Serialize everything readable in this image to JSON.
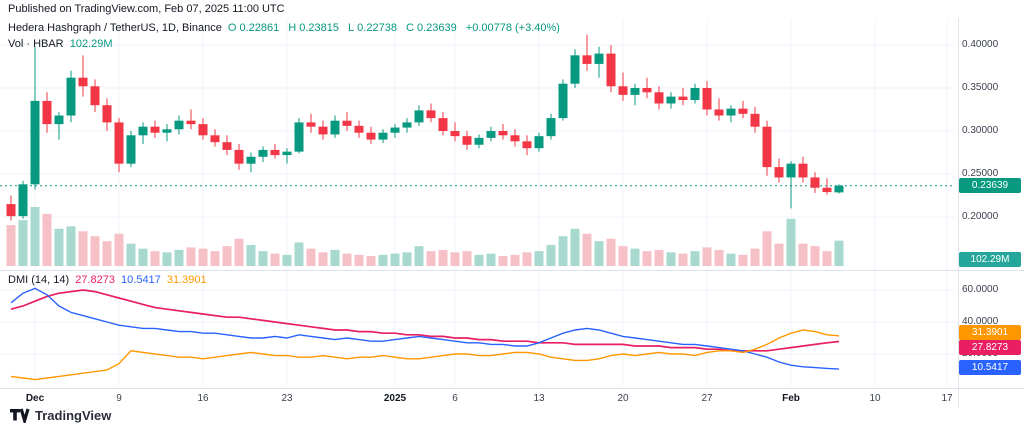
{
  "meta": {
    "published": "Published on TradingView.com, Feb 07, 2025 11:00 UTC"
  },
  "legend": {
    "symbol": "Hedera Hashgraph / TetherUS, 1D, Binance",
    "ohlc": {
      "o_label": "O",
      "o": "0.22861",
      "h_label": "H",
      "h": "0.23815",
      "l_label": "L",
      "l": "0.22738",
      "c_label": "C",
      "c": "0.23639",
      "change": "+0.00778 (+3.40%)"
    },
    "volume": {
      "label": "Vol · HBAR",
      "value": "102.29M"
    },
    "dmi": {
      "label": "DMI (14, 14)",
      "adx": "27.8273",
      "plus_di": "10.5417",
      "minus_di": "31.3901"
    }
  },
  "badges": {
    "last_price": "0.23639",
    "volume": "102.29M",
    "minus_di": "31.3901",
    "adx": "27.8273",
    "plus_di": "10.5417"
  },
  "axes": {
    "price_labels": [
      {
        "text": "0.40000",
        "value": 0.4
      },
      {
        "text": "0.35000",
        "value": 0.35
      },
      {
        "text": "0.30000",
        "value": 0.3
      },
      {
        "text": "0.25000",
        "value": 0.25
      },
      {
        "text": "0.20000",
        "value": 0.2
      }
    ],
    "dmi_labels": [
      {
        "text": "60.0000",
        "value": 60
      },
      {
        "text": "40.0000",
        "value": 40
      },
      {
        "text": "20.0000",
        "value": 20
      }
    ],
    "time_labels": [
      {
        "text": "Dec",
        "idx": 2,
        "bold": true
      },
      {
        "text": "9",
        "idx": 9
      },
      {
        "text": "16",
        "idx": 16
      },
      {
        "text": "23",
        "idx": 23
      },
      {
        "text": "2025",
        "idx": 32,
        "bold": true
      },
      {
        "text": "6",
        "idx": 37
      },
      {
        "text": "13",
        "idx": 44
      },
      {
        "text": "20",
        "idx": 51
      },
      {
        "text": "27",
        "idx": 58
      },
      {
        "text": "Feb",
        "idx": 65,
        "bold": true
      },
      {
        "text": "10",
        "idx": 72
      },
      {
        "text": "17",
        "idx": 78
      }
    ]
  },
  "colors": {
    "up": "#089981",
    "down": "#f23645",
    "vol_up": "#a8d9cf",
    "vol_down": "#f6c0c7",
    "adx": "#e91e63",
    "plus_di": "#2962ff",
    "minus_di": "#ff9800",
    "last_price_line": "#089981",
    "grid": "#f0f3fa",
    "separator": "#e0e3eb"
  },
  "footer": {
    "brand": "TradingView"
  },
  "chart_data": {
    "type": "candlestick+volume+dmi",
    "title": "Hedera Hashgraph / TetherUS, 1D, Binance",
    "last_price": 0.23639,
    "price_axis_ticks": [
      0.2,
      0.25,
      0.3,
      0.35,
      0.4
    ],
    "dmi_axis_ticks": [
      20,
      40,
      60
    ],
    "volume_scale_max_millions": 250,
    "candles_ohlc": [
      [
        0.215,
        0.225,
        0.196,
        0.201
      ],
      [
        0.201,
        0.242,
        0.198,
        0.238
      ],
      [
        0.238,
        0.398,
        0.232,
        0.335
      ],
      [
        0.335,
        0.345,
        0.298,
        0.308
      ],
      [
        0.308,
        0.322,
        0.29,
        0.318
      ],
      [
        0.318,
        0.37,
        0.31,
        0.362
      ],
      [
        0.362,
        0.388,
        0.34,
        0.352
      ],
      [
        0.352,
        0.36,
        0.322,
        0.33
      ],
      [
        0.33,
        0.338,
        0.3,
        0.31
      ],
      [
        0.31,
        0.315,
        0.252,
        0.262
      ],
      [
        0.262,
        0.3,
        0.258,
        0.295
      ],
      [
        0.295,
        0.31,
        0.285,
        0.305
      ],
      [
        0.305,
        0.312,
        0.292,
        0.298
      ],
      [
        0.298,
        0.308,
        0.288,
        0.302
      ],
      [
        0.302,
        0.318,
        0.296,
        0.312
      ],
      [
        0.312,
        0.325,
        0.302,
        0.308
      ],
      [
        0.308,
        0.315,
        0.29,
        0.295
      ],
      [
        0.295,
        0.302,
        0.282,
        0.287
      ],
      [
        0.287,
        0.295,
        0.272,
        0.278
      ],
      [
        0.278,
        0.285,
        0.255,
        0.262
      ],
      [
        0.262,
        0.275,
        0.252,
        0.27
      ],
      [
        0.27,
        0.282,
        0.264,
        0.278
      ],
      [
        0.278,
        0.285,
        0.268,
        0.272
      ],
      [
        0.272,
        0.28,
        0.262,
        0.276
      ],
      [
        0.276,
        0.315,
        0.274,
        0.31
      ],
      [
        0.31,
        0.32,
        0.298,
        0.305
      ],
      [
        0.305,
        0.312,
        0.29,
        0.296
      ],
      [
        0.296,
        0.318,
        0.292,
        0.312
      ],
      [
        0.312,
        0.322,
        0.3,
        0.306
      ],
      [
        0.306,
        0.312,
        0.292,
        0.298
      ],
      [
        0.298,
        0.305,
        0.285,
        0.29
      ],
      [
        0.29,
        0.302,
        0.286,
        0.298
      ],
      [
        0.298,
        0.308,
        0.292,
        0.304
      ],
      [
        0.304,
        0.315,
        0.298,
        0.31
      ],
      [
        0.31,
        0.33,
        0.306,
        0.324
      ],
      [
        0.324,
        0.332,
        0.31,
        0.315
      ],
      [
        0.315,
        0.322,
        0.295,
        0.3
      ],
      [
        0.3,
        0.31,
        0.288,
        0.294
      ],
      [
        0.294,
        0.3,
        0.278,
        0.284
      ],
      [
        0.284,
        0.296,
        0.28,
        0.292
      ],
      [
        0.292,
        0.305,
        0.288,
        0.3
      ],
      [
        0.3,
        0.308,
        0.29,
        0.295
      ],
      [
        0.295,
        0.302,
        0.282,
        0.288
      ],
      [
        0.288,
        0.295,
        0.272,
        0.28
      ],
      [
        0.28,
        0.298,
        0.276,
        0.294
      ],
      [
        0.294,
        0.32,
        0.29,
        0.315
      ],
      [
        0.315,
        0.36,
        0.312,
        0.355
      ],
      [
        0.355,
        0.395,
        0.35,
        0.388
      ],
      [
        0.388,
        0.412,
        0.37,
        0.378
      ],
      [
        0.378,
        0.398,
        0.362,
        0.39
      ],
      [
        0.39,
        0.4,
        0.345,
        0.352
      ],
      [
        0.352,
        0.368,
        0.335,
        0.342
      ],
      [
        0.342,
        0.355,
        0.33,
        0.35
      ],
      [
        0.35,
        0.362,
        0.338,
        0.345
      ],
      [
        0.345,
        0.352,
        0.325,
        0.332
      ],
      [
        0.332,
        0.345,
        0.326,
        0.34
      ],
      [
        0.34,
        0.35,
        0.33,
        0.336
      ],
      [
        0.336,
        0.355,
        0.332,
        0.35
      ],
      [
        0.35,
        0.358,
        0.318,
        0.325
      ],
      [
        0.325,
        0.338,
        0.312,
        0.318
      ],
      [
        0.318,
        0.33,
        0.31,
        0.326
      ],
      [
        0.326,
        0.335,
        0.315,
        0.32
      ],
      [
        0.32,
        0.328,
        0.298,
        0.305
      ],
      [
        0.305,
        0.312,
        0.248,
        0.258
      ],
      [
        0.258,
        0.268,
        0.24,
        0.246
      ],
      [
        0.246,
        0.265,
        0.21,
        0.262
      ],
      [
        0.262,
        0.27,
        0.24,
        0.246
      ],
      [
        0.246,
        0.252,
        0.228,
        0.234
      ],
      [
        0.234,
        0.245,
        0.226,
        0.229
      ],
      [
        0.22861,
        0.23815,
        0.22738,
        0.23639
      ]
    ],
    "volumes_millions": [
      165,
      185,
      238,
      210,
      150,
      160,
      140,
      120,
      100,
      130,
      90,
      70,
      60,
      55,
      65,
      75,
      70,
      60,
      80,
      110,
      85,
      60,
      50,
      45,
      95,
      70,
      55,
      65,
      50,
      45,
      40,
      45,
      50,
      55,
      80,
      60,
      65,
      55,
      60,
      45,
      50,
      40,
      45,
      55,
      60,
      85,
      120,
      150,
      130,
      100,
      110,
      80,
      70,
      60,
      65,
      55,
      50,
      60,
      75,
      65,
      50,
      45,
      70,
      140,
      90,
      190,
      90,
      80,
      60,
      102.29
    ],
    "dmi": {
      "adx": [
        48,
        50,
        53,
        56,
        58,
        59,
        60,
        59,
        57,
        55,
        53,
        51,
        49,
        48,
        47,
        46,
        45,
        44,
        43,
        43,
        42,
        41,
        40,
        39,
        38,
        37,
        36,
        35,
        35,
        34,
        34,
        33,
        33,
        32,
        32,
        31,
        31,
        30,
        30,
        29,
        29,
        28,
        28,
        28,
        27,
        27,
        27,
        26,
        26,
        26,
        26,
        26,
        25,
        25,
        25,
        24,
        24,
        24,
        23,
        23,
        22,
        22,
        22,
        22,
        23,
        24,
        25,
        26,
        27,
        27.8273
      ],
      "plus_di": [
        52,
        58,
        61,
        57,
        50,
        46,
        44,
        42,
        40,
        38,
        37,
        36,
        36,
        35,
        34,
        34,
        33,
        33,
        32,
        31,
        30,
        30,
        31,
        30,
        32,
        31,
        30,
        29,
        30,
        29,
        28,
        28,
        29,
        30,
        31,
        30,
        29,
        28,
        27,
        27,
        26,
        26,
        25,
        25,
        27,
        30,
        33,
        35,
        36,
        35,
        33,
        31,
        30,
        29,
        28,
        27,
        26,
        26,
        25,
        24,
        23,
        22,
        20,
        18,
        15,
        13,
        12,
        11.5,
        11,
        10.5417
      ],
      "minus_di": [
        6,
        5,
        4,
        5,
        6,
        7,
        8,
        9,
        10,
        14,
        22,
        21,
        20,
        19,
        18,
        18,
        17,
        18,
        19,
        20,
        21,
        20,
        19,
        19,
        18,
        18,
        19,
        18,
        17,
        18,
        18,
        19,
        18,
        17,
        17,
        18,
        19,
        20,
        20,
        19,
        19,
        20,
        21,
        21,
        20,
        18,
        17,
        16,
        16,
        17,
        19,
        20,
        19,
        20,
        21,
        20,
        20,
        19,
        21,
        22,
        22,
        21,
        23,
        26,
        30,
        33,
        35,
        34,
        32,
        31.3901
      ]
    }
  }
}
